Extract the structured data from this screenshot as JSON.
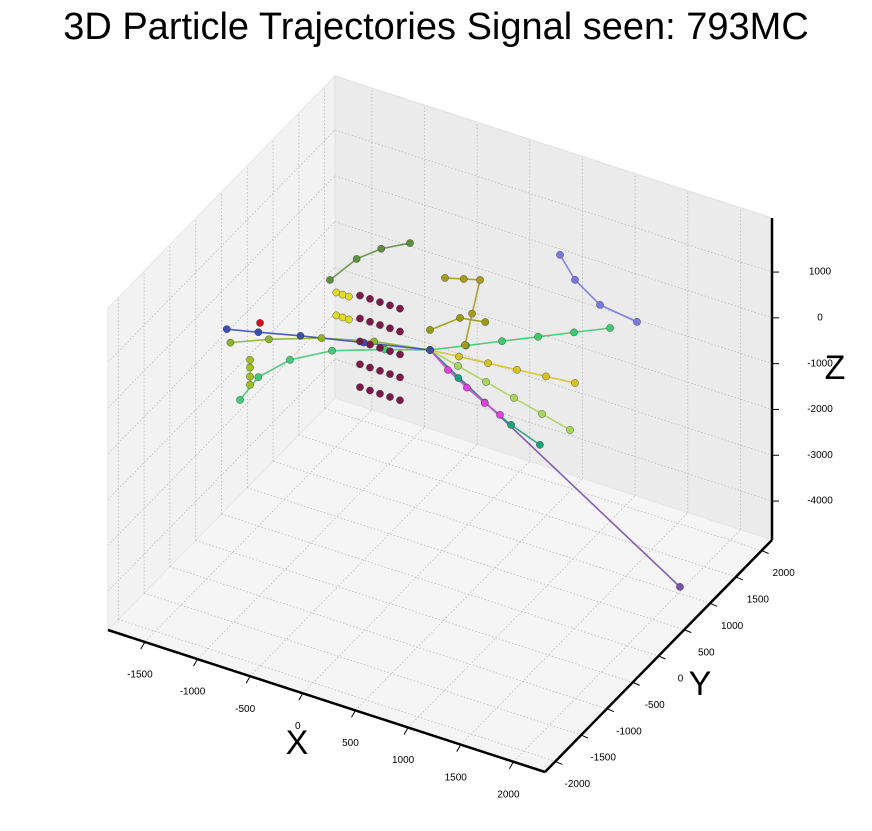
{
  "chart_data": {
    "type": "scatter",
    "title": "3D Particle Trajectories Signal seen: 793MC",
    "xlabel": "X",
    "ylabel": "Y",
    "zlabel": "Z",
    "xlim": [
      -1850,
      2300
    ],
    "ylim": [
      -2200,
      2200
    ],
    "zlim": [
      -4850,
      2180
    ],
    "xticks": [
      -1500,
      -1000,
      -500,
      0,
      500,
      1000,
      1500,
      2000
    ],
    "yticks": [
      -2000,
      -1500,
      -1000,
      -500,
      0,
      500,
      1000,
      1500,
      2000
    ],
    "zticks": [
      -4000,
      -3000,
      -2000,
      -1000,
      0,
      1000
    ],
    "grid": true,
    "series": [
      {
        "color": "#7b4fa6",
        "lines": true,
        "x": [
          130,
          2014
        ],
        "y": [
          0,
          1000
        ],
        "z": [
          210,
          -4706
        ]
      },
      {
        "color": "#3ec96a",
        "lines": true,
        "x": [
          130,
          472,
          814,
          1156,
          1498,
          1840
        ],
        "y": [
          0,
          0,
          0,
          0,
          0,
          0
        ],
        "z": [
          210,
          561,
          913,
          1264,
          1616,
          1967
        ]
      },
      {
        "color": "#a6d65a",
        "lines": true,
        "x": [
          130,
          396,
          662,
          928,
          1194,
          1460
        ],
        "y": [
          0,
          0,
          0,
          0,
          0,
          0
        ],
        "z": [
          210,
          59,
          -91,
          -242,
          -392,
          -543
        ]
      },
      {
        "color": "#d8c21e",
        "lines": true,
        "x": [
          130,
          405,
          681,
          956,
          1232,
          1507
        ],
        "y": [
          0,
          0,
          0,
          0,
          0,
          0
        ],
        "z": [
          210,
          272,
          333,
          395,
          456,
          518
        ]
      },
      {
        "color": "#1aa37a",
        "lines": true,
        "x": [
          130,
          400,
          650,
          900,
          1174
        ],
        "y": [
          0,
          0,
          0,
          0,
          0
        ],
        "z": [
          210,
          -200,
          -550,
          -850,
          -1082
        ]
      },
      {
        "color": "#e040e0",
        "lines": true,
        "x": [
          130,
          300,
          480,
          650,
          795
        ],
        "y": [
          0,
          0,
          0,
          0,
          0
        ],
        "z": [
          210,
          -100,
          -350,
          -560,
          -711
        ]
      },
      {
        "color": "#45c878",
        "lines": true,
        "x": [
          130,
          -300,
          -800,
          -1200,
          -1500,
          -1674
        ],
        "y": [
          0,
          0,
          0,
          0,
          0,
          0
        ],
        "z": [
          210,
          -100,
          -500,
          -1000,
          -1600,
          -2228
        ]
      },
      {
        "color": "#8db32b",
        "lines": true,
        "x": [
          130,
          -400,
          -900,
          -1400,
          -1765
        ],
        "y": [
          0,
          0,
          0,
          0,
          0
        ],
        "z": [
          210,
          0,
          -300,
          -700,
          -1045
        ]
      },
      {
        "color": "#3b4fb0",
        "lines": true,
        "x": [
          130,
          -500,
          -1100,
          -1500,
          -1800
        ],
        "y": [
          0,
          0,
          0,
          0,
          0
        ],
        "z": [
          210,
          -100,
          -400,
          -620,
          -777
        ]
      },
      {
        "color": "#5b8f3e",
        "lines": true,
        "x": [
          -820,
          -640,
          -480,
          -305
        ],
        "y": [
          0,
          150,
          300,
          500
        ],
        "z": [
          1029,
          1450,
          1620,
          1644
        ]
      },
      {
        "color": "#7878e0",
        "lines": true,
        "x": [
          630,
          772,
          1010,
          1361
        ],
        "y": [
          1500,
          1500,
          1500,
          1500
        ],
        "z": [
          933,
          494,
          125,
          16
        ]
      },
      {
        "color": "#a89a1a",
        "lines": true,
        "x": [
          272,
          450,
          605,
          530,
          462
        ],
        "y": [
          0,
          0,
          0,
          0,
          0
        ],
        "z": [
          1889,
          2000,
          2094,
          1300,
          568
        ]
      },
      {
        "color": "#9a9a10",
        "lines": true,
        "x": [
          130,
          415,
          655
        ],
        "y": [
          0,
          0,
          0
        ],
        "z": [
          647,
          1123,
          1212
        ]
      },
      {
        "color": "#a0c020",
        "lines": true,
        "x": [
          -1579,
          -1579,
          -1579,
          -1579
        ],
        "y": [
          0,
          0,
          0,
          0
        ],
        "z": [
          -1283,
          -1450,
          -1650,
          -1829
        ]
      },
      {
        "color": "#7a1a4a",
        "lines": false,
        "x": [
          -535,
          -440,
          -345,
          -250,
          -155,
          -535,
          -440,
          -345,
          -250,
          -155,
          -535,
          -440,
          -345,
          -250,
          -155,
          -535,
          -440,
          -345,
          -250,
          -155,
          -535,
          -440,
          -345,
          -250,
          -155
        ],
        "y": [
          0,
          0,
          0,
          0,
          0,
          0,
          0,
          0,
          0,
          0,
          0,
          0,
          0,
          0,
          0,
          0,
          0,
          0,
          0,
          0,
          0,
          0,
          0,
          0,
          0
        ],
        "z": [
          900,
          900,
          900,
          900,
          900,
          400,
          400,
          400,
          400,
          400,
          -100,
          -100,
          -100,
          -100,
          -100,
          -600,
          -600,
          -600,
          -600,
          -600,
          -1100,
          -1100,
          -1100,
          -1100,
          -1100
        ]
      },
      {
        "color": "#e0dc20",
        "lines": false,
        "x": [
          -760,
          -700,
          -640,
          -760,
          -700,
          -640
        ],
        "y": [
          0,
          0,
          0,
          0,
          0,
          0
        ],
        "z": [
          800,
          800,
          800,
          300,
          300,
          300
        ]
      },
      {
        "color": "#d01020",
        "lines": false,
        "x": [
          -1484
        ],
        "y": [
          0
        ],
        "z": [
          -405
        ]
      }
    ]
  }
}
